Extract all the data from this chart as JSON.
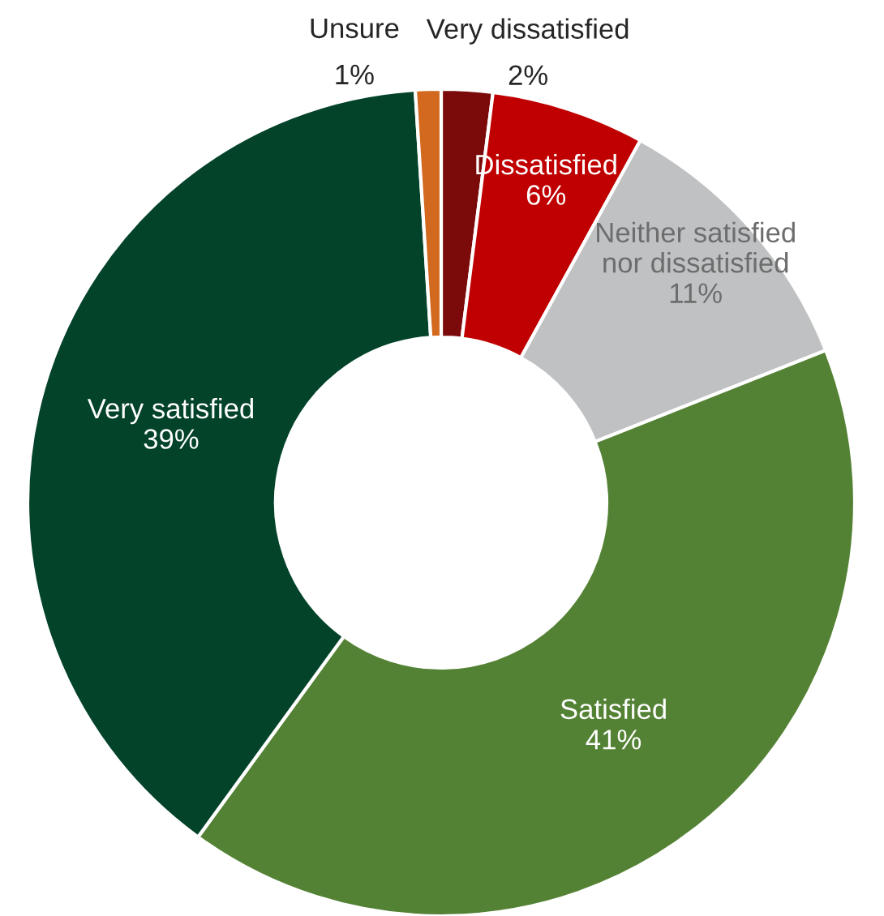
{
  "chart_data": {
    "type": "donut",
    "categories": [
      "Very dissatisfied",
      "Dissatisfied",
      "Neither satisfied\nnor dissatisfied",
      "Satisfied",
      "Very satisfied",
      "Unsure"
    ],
    "values": [
      2,
      6,
      11,
      41,
      39,
      1
    ],
    "colors": [
      "#7b0a0a",
      "#c00000",
      "#bfc1c3",
      "#548235",
      "#03432a",
      "#d2691e"
    ],
    "value_labels": [
      "2%",
      "6%",
      "11%",
      "41%",
      "39%",
      "1%"
    ],
    "legend": false
  }
}
